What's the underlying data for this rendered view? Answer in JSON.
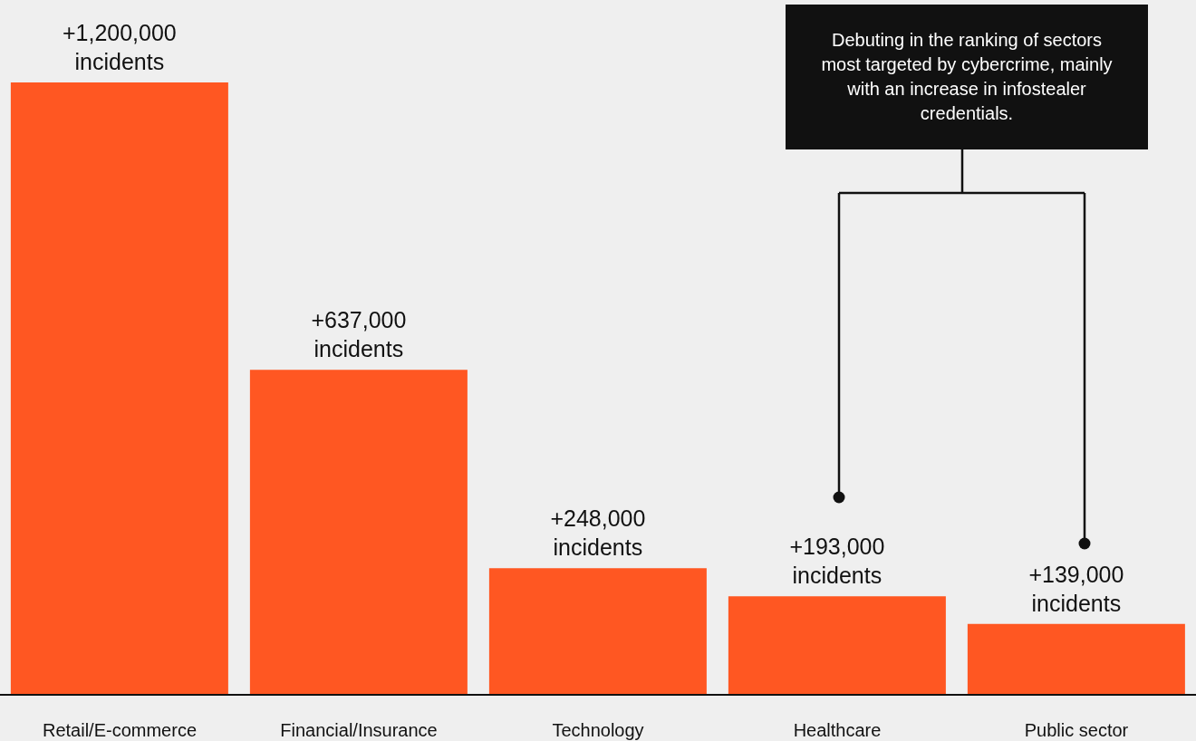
{
  "chart_data": {
    "type": "bar",
    "categories": [
      "Retail/E-commerce",
      "Financial/Insurance",
      "Technology",
      "Healthcare",
      "Public sector"
    ],
    "values": [
      1200000,
      637000,
      248000,
      193000,
      139000
    ],
    "color": "#ff5722",
    "value_labels": [
      "+1,200,000 incidents",
      "+637,000 incidents",
      "+248,000 incidents",
      "+193,000 incidents",
      "+139,000 incidents"
    ],
    "annotations": [
      "Debuting in the ranking of sectors most targeted by cybercrime, mainly with an increase in infostealer credentials."
    ],
    "grid": false,
    "legend": false
  }
}
